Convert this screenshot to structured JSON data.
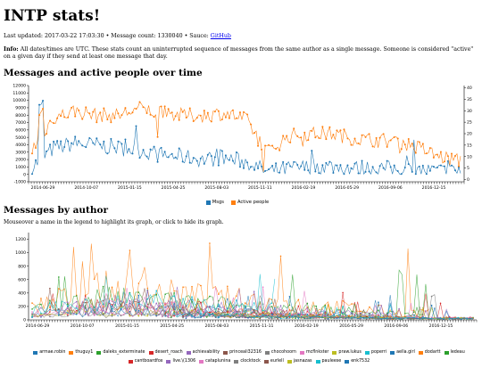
{
  "page": {
    "title": "INTP stats!",
    "last_updated_label": "Last updated: ",
    "last_updated": "2017-03-22 17:03:30",
    "separator": " • ",
    "message_count_label": "Message count: ",
    "message_count": "1330040",
    "sauce_label": "Sauce: ",
    "sauce_link": "GitHub",
    "info_label": "Info:",
    "info_text": " All dates/times are UTC. These stats count an uninterrupted sequence of messages from the same author as a single message. Someone is considered \"active\" on a given day if they send at least one message that day."
  },
  "section1": {
    "title": "Messages and active people over time"
  },
  "section2": {
    "title": "Messages by author",
    "hint": "Mouseover a name in the legend to highlight its graph, or click to hide its graph."
  },
  "chart_data": [
    {
      "type": "line",
      "x_tick_labels": [
        "2014-06-29",
        "2014-10-07",
        "2015-01-15",
        "2015-04-25",
        "2015-08-03",
        "2015-11-11",
        "2016-02-19",
        "2016-05-29",
        "2016-09-06",
        "2016-12-15"
      ],
      "x": [
        "2014-06-29",
        "2014-08-18",
        "2014-10-07",
        "2014-11-26",
        "2015-01-15",
        "2015-03-06",
        "2015-04-25",
        "2015-06-14",
        "2015-08-03",
        "2015-09-22",
        "2015-11-11",
        "2015-12-31",
        "2016-02-19",
        "2016-04-09",
        "2016-05-29",
        "2016-07-18",
        "2016-09-06",
        "2016-10-26",
        "2016-12-15",
        "2017-02-03",
        "2017-03-22"
      ],
      "series": [
        {
          "name": "Msgs",
          "axis": "left",
          "color": "#1f77b4",
          "values": [
            1000,
            3500,
            4200,
            3900,
            3600,
            3300,
            2600,
            2400,
            2000,
            2200,
            1700,
            300,
            800,
            1000,
            1100,
            800,
            900,
            700,
            500,
            450,
            400
          ]
        },
        {
          "name": "Active people",
          "axis": "right",
          "color": "#ff7f0e",
          "values": [
            13,
            27,
            30,
            28,
            28,
            31,
            29,
            28,
            28,
            29,
            26,
            12,
            19,
            20,
            20,
            18,
            17,
            17,
            14,
            10,
            8
          ]
        }
      ],
      "y_left": {
        "ylim": [
          -1000,
          12000
        ],
        "ticks": [
          "-1000",
          "0",
          "1000",
          "2000",
          "3000",
          "4000",
          "5000",
          "6000",
          "7000",
          "8000",
          "9000",
          "10000",
          "11000",
          "12000"
        ]
      },
      "y_right": {
        "ylim": [
          -1,
          41
        ],
        "ticks": [
          "0",
          "5",
          "10",
          "15",
          "20",
          "25",
          "30",
          "35",
          "40"
        ]
      },
      "legend": "bottom-center"
    },
    {
      "type": "line",
      "x_tick_labels": [
        "2014-06-29",
        "2014-10-07",
        "2015-01-15",
        "2015-04-25",
        "2015-08-03",
        "2015-11-11",
        "2016-02-19",
        "2016-05-29",
        "2016-09-06",
        "2016-12-15"
      ],
      "y_left": {
        "ylim": [
          0,
          1300
        ],
        "ticks": [
          "0",
          "200",
          "400",
          "600",
          "800",
          "1000",
          "1200"
        ]
      },
      "legend": "bottom",
      "series": [
        {
          "name": "armae.robin",
          "color": "#1f77b4",
          "peak": 450
        },
        {
          "name": "thuguy1",
          "color": "#ff7f0e",
          "peak": 1150
        },
        {
          "name": "daleks_exterminate",
          "color": "#2ca02c",
          "peak": 800
        },
        {
          "name": "desert_roach",
          "color": "#d62728",
          "peak": 420
        },
        {
          "name": "achievability",
          "color": "#9467bd",
          "peak": 600
        },
        {
          "name": "princeali32316",
          "color": "#8c564b",
          "peak": 500
        },
        {
          "name": "chocohoorn",
          "color": "#7f7f7f",
          "peak": 380
        },
        {
          "name": "mcflnkster",
          "color": "#e377c2",
          "peak": 520
        },
        {
          "name": "praw.lukus",
          "color": "#bcbd22",
          "peak": 350
        },
        {
          "name": "poperri",
          "color": "#17becf",
          "peak": 700
        },
        {
          "name": "aella.girl",
          "color": "#1f77b4",
          "peak": 300
        },
        {
          "name": "dodartt",
          "color": "#ff7f0e",
          "peak": 260
        },
        {
          "name": "ledeau",
          "color": "#2ca02c",
          "peak": 240
        },
        {
          "name": "cantboardfox",
          "color": "#d62728",
          "peak": 300
        },
        {
          "name": "live.\\(1306",
          "color": "#9467bd",
          "peak": 220
        },
        {
          "name": "cataplunina",
          "color": "#e377c2",
          "peak": 280
        },
        {
          "name": "clocktock",
          "color": "#7f7f7f",
          "peak": 200
        },
        {
          "name": "eurlell",
          "color": "#8c564b",
          "peak": 180
        },
        {
          "name": "jasnazas",
          "color": "#bcbd22",
          "peak": 260
        },
        {
          "name": "pauleese",
          "color": "#17becf",
          "peak": 240
        },
        {
          "name": "enk7532",
          "color": "#1f77b4",
          "peak": 190
        }
      ]
    }
  ]
}
